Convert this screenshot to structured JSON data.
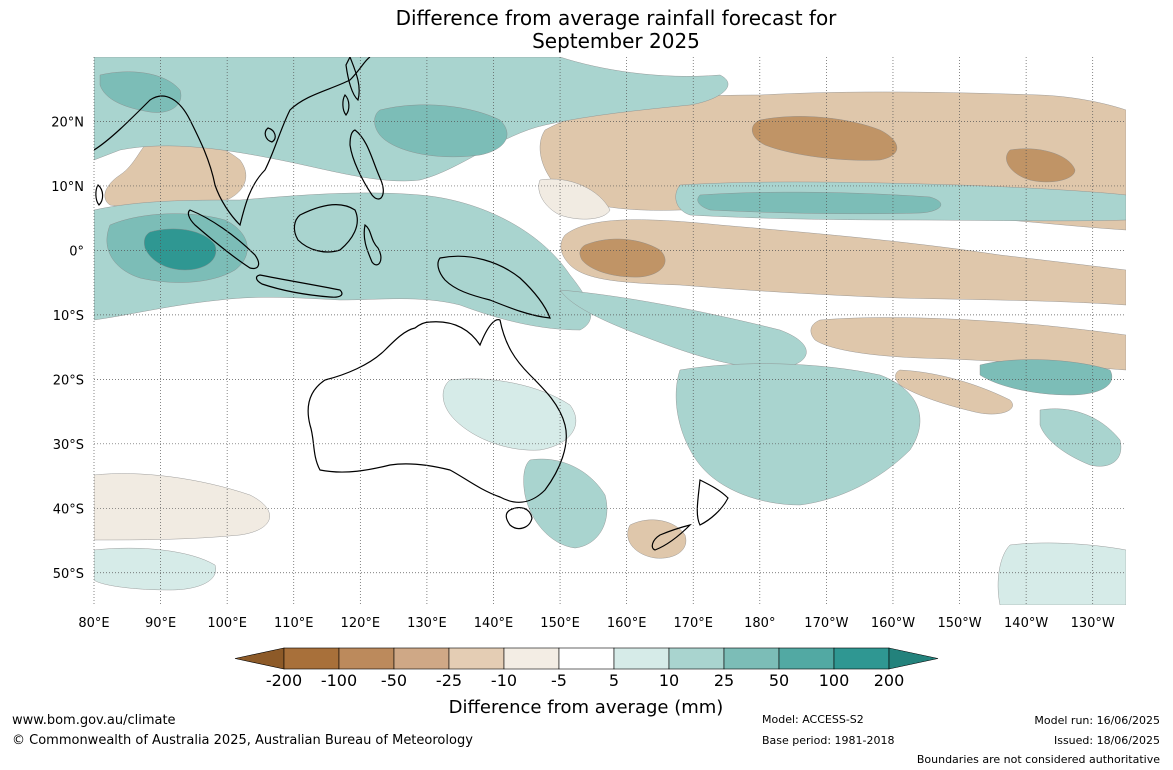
{
  "title_line1": "Difference from average rainfall forecast for",
  "title_line2": "September 2025",
  "map": {
    "lon_labels": [
      "80°E",
      "90°E",
      "100°E",
      "110°E",
      "120°E",
      "130°E",
      "140°E",
      "150°E",
      "160°E",
      "170°E",
      "180°",
      "170°W",
      "160°W",
      "150°W",
      "140°W",
      "130°W"
    ],
    "lat_labels": [
      "20°N",
      "10°N",
      "0°",
      "10°S",
      "20°S",
      "30°S",
      "40°S",
      "50°S"
    ],
    "lon_range": [
      80,
      235
    ],
    "lat_range": [
      -55,
      30
    ]
  },
  "legend": {
    "title": "Difference from average (mm)",
    "tick_labels": [
      "-200",
      "-100",
      "-50",
      "-25",
      "-10",
      "-5",
      "5",
      "10",
      "25",
      "50",
      "100",
      "200"
    ],
    "colors": [
      "#a8703a",
      "#bc8a5c",
      "#cfa886",
      "#e4cdb4",
      "#f3ede4",
      "#ffffff",
      "#d6ebe8",
      "#a9d4cf",
      "#7cbdb7",
      "#52a9a3",
      "#2f9792",
      "#23827c"
    ]
  },
  "colors": {
    "dry_strong": "#c09466",
    "dry": "#dfc7ab",
    "dry_light": "#f1ebe2",
    "wet_light": "#d6ebe8",
    "wet": "#a9d4cf",
    "wet_mid": "#7cbdb7",
    "wet_strong": "#4ea59f",
    "wet_extreme": "#2f9792"
  },
  "footer": {
    "website": "www.bom.gov.au/climate",
    "copyright": "© Commonwealth of Australia 2025, Australian Bureau of Meteorology",
    "model": "Model: ACCESS-S2",
    "base_period": "Base period: 1981-2018",
    "model_run": "Model run: 16/06/2025",
    "issued": "Issued: 18/06/2025",
    "disclaimer": "Boundaries are not considered authoritative"
  }
}
